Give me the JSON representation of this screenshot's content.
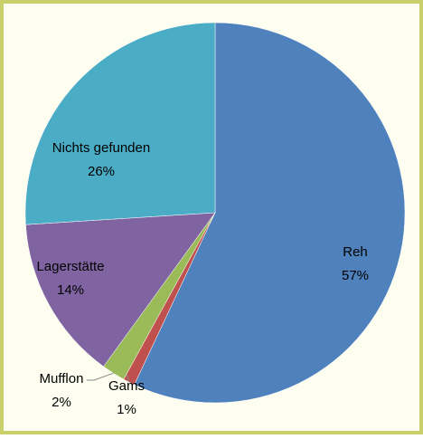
{
  "chart_data": {
    "type": "pie",
    "categories": [
      "Reh",
      "Gams",
      "Mufflon",
      "Lagerstätte",
      "Nichts gefunden"
    ],
    "values": [
      57,
      1,
      2,
      14,
      26
    ],
    "value_labels": [
      "57%",
      "1%",
      "2%",
      "14%",
      "26%"
    ],
    "colors": [
      "#4f81bd",
      "#c0504d",
      "#9bbb59",
      "#8064a2",
      "#4bacc6"
    ]
  }
}
